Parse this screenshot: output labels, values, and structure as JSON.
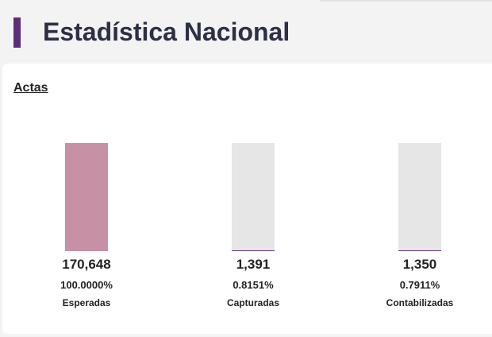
{
  "page": {
    "title": "Estadística Nacional"
  },
  "colors": {
    "accent": "#5e2d79",
    "bar_expected": "#c890a5",
    "bar_track": "#e6e6e6"
  },
  "section": {
    "title": "Actas"
  },
  "stats": [
    {
      "value": "170,648",
      "percent": "100.0000%",
      "label": "Esperadas",
      "fill_fraction": 1.0
    },
    {
      "value": "1,391",
      "percent": "0.8151%",
      "label": "Capturadas",
      "fill_fraction": 0.008151
    },
    {
      "value": "1,350",
      "percent": "0.7911%",
      "label": "Contabilizadas",
      "fill_fraction": 0.007911
    }
  ]
}
